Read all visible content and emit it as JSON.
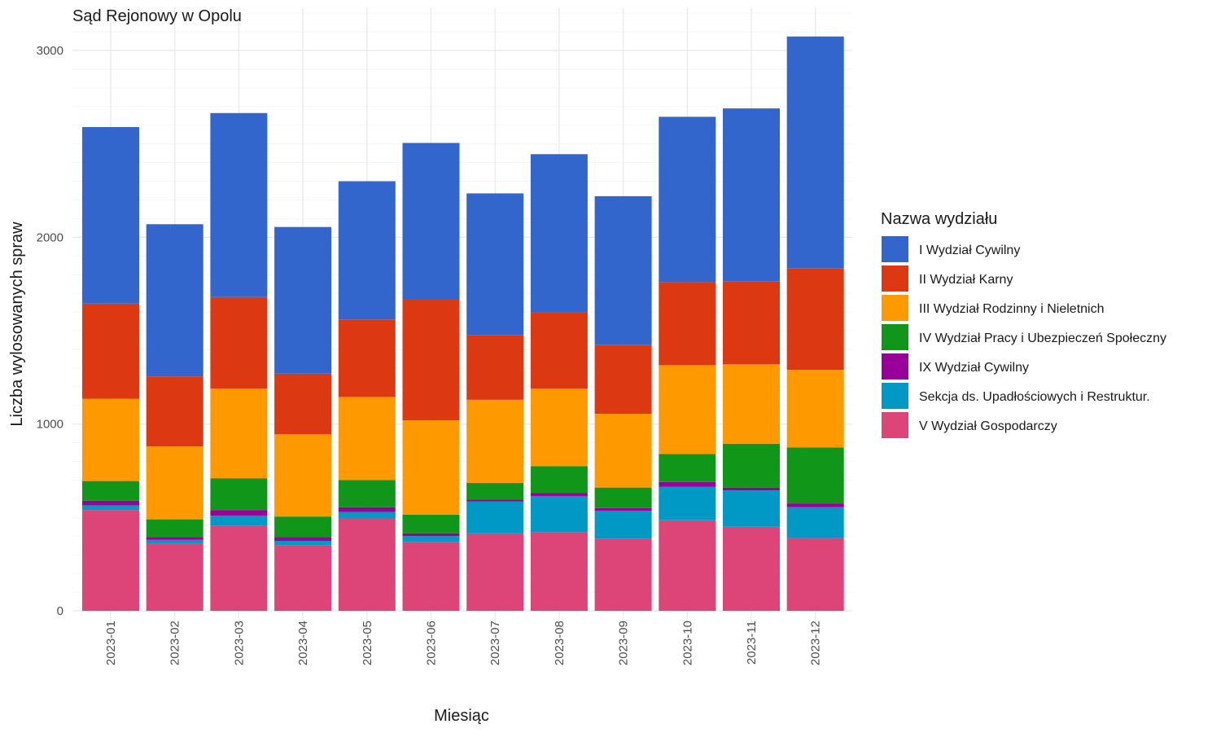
{
  "chart_data": {
    "type": "bar",
    "stacked": true,
    "title": "Sąd Rejonowy w Opolu",
    "xlabel": "Miesiąc",
    "ylabel": "Liczba wylosowanych spraw",
    "ylim": [
      0,
      3200
    ],
    "yticks": [
      0,
      1000,
      2000,
      3000
    ],
    "grid": true,
    "legend": {
      "title": "Nazwa wydziału",
      "position": "right"
    },
    "categories": [
      "2023-01",
      "2023-02",
      "2023-03",
      "2023-04",
      "2023-05",
      "2023-06",
      "2023-07",
      "2023-08",
      "2023-09",
      "2023-10",
      "2023-11",
      "2023-12"
    ],
    "series": [
      {
        "name": "V Wydział Gospodarczy",
        "color": "#dd4477",
        "values": [
          540,
          360,
          455,
          350,
          495,
          370,
          415,
          420,
          385,
          485,
          450,
          390
        ]
      },
      {
        "name": "Sekcja ds. Upadłościowych i Restruktur.",
        "color": "#0099c6",
        "values": [
          25,
          20,
          55,
          25,
          35,
          30,
          170,
          195,
          150,
          180,
          195,
          165
        ]
      },
      {
        "name": "IX Wydział Cywilny",
        "color": "#990099",
        "values": [
          25,
          15,
          30,
          20,
          25,
          15,
          10,
          15,
          15,
          25,
          15,
          20
        ]
      },
      {
        "name": "IV Wydział Pracy i Ubezpieczeń Społeczny",
        "color": "#109618",
        "values": [
          105,
          95,
          170,
          110,
          145,
          100,
          90,
          145,
          110,
          150,
          235,
          300
        ]
      },
      {
        "name": "III Wydział Rodzinny i Nieletnich",
        "color": "#ff9900",
        "values": [
          440,
          390,
          480,
          440,
          445,
          505,
          445,
          415,
          395,
          475,
          425,
          415
        ]
      },
      {
        "name": "II Wydział Karny",
        "color": "#dc3912",
        "values": [
          510,
          375,
          490,
          325,
          415,
          650,
          345,
          410,
          370,
          445,
          445,
          545
        ]
      },
      {
        "name": "I Wydział Cywilny",
        "color": "#3366cc",
        "values": [
          945,
          815,
          985,
          785,
          740,
          835,
          760,
          845,
          795,
          885,
          925,
          1240
        ]
      }
    ]
  }
}
